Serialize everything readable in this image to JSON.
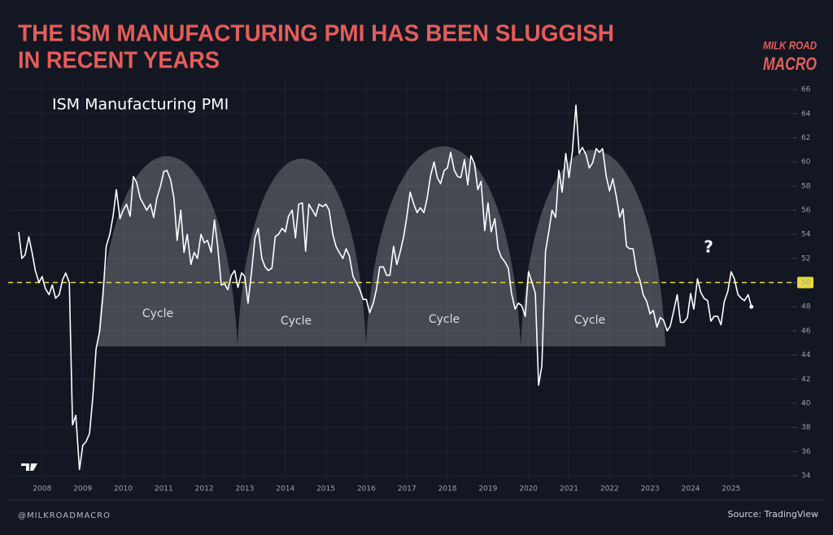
{
  "chart_data": {
    "type": "line",
    "title": [
      "THE ISM MANUFACTURING PMI HAS BEEN SLUGGISH",
      "IN RECENT YEARS"
    ],
    "subtitle": "ISM Manufacturing PMI",
    "annotations": [
      "Cycle",
      "Cycle",
      "Cycle",
      "Cycle",
      "?"
    ],
    "logo": [
      "MILK ROAD",
      "MACRO"
    ],
    "footer_left": "@MILKROADMACRO",
    "footer_right": "Source: TradingView",
    "color": "#ffffff",
    "reference_line": 50,
    "reference_color": "#e8d83a",
    "grid": true,
    "xlim": [
      2007.16,
      2026.53
    ],
    "xticks": [
      2008,
      2009,
      2010,
      2011,
      2012,
      2013,
      2014,
      2015,
      2016,
      2017,
      2018,
      2019,
      2020,
      2021,
      2022,
      2023,
      2024,
      2025
    ],
    "ylim": [
      33.66,
      67.02
    ],
    "yticks": [
      34,
      36,
      38,
      40,
      42,
      44,
      46,
      48,
      50,
      52,
      54,
      56,
      58,
      60,
      62,
      64,
      66
    ],
    "x": [
      2007.42,
      2007.5,
      2007.58,
      2007.67,
      2007.75,
      2007.83,
      2007.92,
      2008,
      2008.08,
      2008.17,
      2008.25,
      2008.33,
      2008.42,
      2008.5,
      2008.58,
      2008.67,
      2008.75,
      2008.83,
      2008.92,
      2009,
      2009.08,
      2009.17,
      2009.25,
      2009.33,
      2009.42,
      2009.5,
      2009.58,
      2009.67,
      2009.75,
      2009.83,
      2009.92,
      2010,
      2010.08,
      2010.17,
      2010.25,
      2010.33,
      2010.42,
      2010.5,
      2010.58,
      2010.67,
      2010.75,
      2010.83,
      2010.92,
      2011,
      2011.08,
      2011.17,
      2011.25,
      2011.33,
      2011.42,
      2011.5,
      2011.58,
      2011.67,
      2011.75,
      2011.83,
      2011.92,
      2012,
      2012.08,
      2012.17,
      2012.25,
      2012.33,
      2012.42,
      2012.5,
      2012.58,
      2012.67,
      2012.75,
      2012.83,
      2012.92,
      2013,
      2013.08,
      2013.17,
      2013.25,
      2013.33,
      2013.42,
      2013.5,
      2013.58,
      2013.67,
      2013.75,
      2013.83,
      2013.92,
      2014,
      2014.08,
      2014.17,
      2014.25,
      2014.33,
      2014.42,
      2014.5,
      2014.58,
      2014.67,
      2014.75,
      2014.83,
      2014.92,
      2015,
      2015.08,
      2015.17,
      2015.25,
      2015.33,
      2015.42,
      2015.5,
      2015.58,
      2015.67,
      2015.75,
      2015.83,
      2015.92,
      2016,
      2016.08,
      2016.17,
      2016.25,
      2016.33,
      2016.42,
      2016.5,
      2016.58,
      2016.67,
      2016.75,
      2016.83,
      2016.92,
      2017,
      2017.08,
      2017.17,
      2017.25,
      2017.33,
      2017.42,
      2017.5,
      2017.58,
      2017.67,
      2017.75,
      2017.83,
      2017.92,
      2018,
      2018.08,
      2018.17,
      2018.25,
      2018.33,
      2018.42,
      2018.5,
      2018.58,
      2018.67,
      2018.75,
      2018.83,
      2018.92,
      2019,
      2019.08,
      2019.17,
      2019.25,
      2019.33,
      2019.42,
      2019.5,
      2019.58,
      2019.67,
      2019.75,
      2019.83,
      2019.92,
      2020,
      2020.08,
      2020.17,
      2020.25,
      2020.33,
      2020.42,
      2020.5,
      2020.58,
      2020.67,
      2020.75,
      2020.83,
      2020.92,
      2021,
      2021.08,
      2021.17,
      2021.25,
      2021.33,
      2021.42,
      2021.5,
      2021.58,
      2021.67,
      2021.75,
      2021.83,
      2021.92,
      2022,
      2022.08,
      2022.17,
      2022.25,
      2022.33,
      2022.42,
      2022.5,
      2022.58,
      2022.67,
      2022.75,
      2022.83,
      2022.92,
      2023,
      2023.08,
      2023.17,
      2023.25,
      2023.33,
      2023.42,
      2023.5,
      2023.58,
      2023.67,
      2023.75,
      2023.83,
      2023.92,
      2024,
      2024.08,
      2024.17,
      2024.25,
      2024.33,
      2024.42,
      2024.5,
      2024.58,
      2024.67,
      2024.75,
      2024.83,
      2024.92,
      2025,
      2025.08,
      2025.17,
      2025.25,
      2025.33,
      2025.42,
      2025.5
    ],
    "values": [
      54.2,
      52,
      52.3,
      53.8,
      52.5,
      51,
      50,
      50.5,
      49.5,
      49,
      49.8,
      48.7,
      49,
      50.2,
      50.8,
      50,
      38.2,
      39,
      34.5,
      36.5,
      36.8,
      37.5,
      40.5,
      44.5,
      46,
      49,
      53,
      54,
      55.5,
      57.7,
      55.3,
      56,
      56.5,
      55.5,
      58.8,
      58.3,
      57,
      56.5,
      56,
      56.5,
      55.4,
      57,
      58,
      59.2,
      59.3,
      58.5,
      57,
      53.5,
      56,
      52.5,
      54,
      51.5,
      52.5,
      52,
      54,
      53.3,
      53.5,
      52.5,
      55.2,
      53,
      49.8,
      49.9,
      49.4,
      50.6,
      51,
      49.6,
      50.8,
      50.5,
      48.3,
      51,
      53.7,
      54.5,
      52,
      51.3,
      51,
      51.2,
      53.8,
      54,
      54.5,
      54.2,
      55.5,
      56,
      53.7,
      56.5,
      56.6,
      52.6,
      56.5,
      56,
      55.5,
      56.5,
      56.3,
      56.5,
      56,
      54,
      53,
      52.5,
      52,
      52.8,
      52.2,
      50.5,
      50,
      49.5,
      48.6,
      48.6,
      47.5,
      48.3,
      49.5,
      51.3,
      51.3,
      50.6,
      50.6,
      53,
      51.5,
      52.5,
      53.8,
      55.5,
      57.5,
      56.5,
      55.8,
      56.2,
      55.8,
      57,
      58.8,
      60,
      58.7,
      58.2,
      59.3,
      59.5,
      60.8,
      59.3,
      58.8,
      58.7,
      60.2,
      58.1,
      60.5,
      59.8,
      57.7,
      58.4,
      54.3,
      56.6,
      54.2,
      55.3,
      52.8,
      52.1,
      51.7,
      51.2,
      49.1,
      47.8,
      48.3,
      48.1,
      47.2,
      50.9,
      50.1,
      49.1,
      41.5,
      43.1,
      52.6,
      54.2,
      56,
      55.4,
      59.3,
      57.5,
      60.7,
      58.7,
      60.8,
      64.7,
      60.7,
      61.2,
      60.6,
      59.5,
      59.9,
      61.1,
      60.8,
      61.1,
      58.8,
      57.6,
      58.6,
      57.1,
      55.4,
      56.1,
      53,
      52.8,
      52.8,
      50.9,
      50.2,
      49,
      48.4,
      47.4,
      47.7,
      46.3,
      47.1,
      46.9,
      46,
      46.4,
      47.6,
      49,
      46.7,
      46.7,
      47.1,
      49.1,
      47.8,
      50.3,
      49.2,
      48.7,
      48.5,
      46.8,
      47.2,
      47.2,
      46.5,
      48.4,
      49.3,
      50.9,
      50.3,
      49,
      48.7,
      48.5,
      49,
      48
    ]
  }
}
